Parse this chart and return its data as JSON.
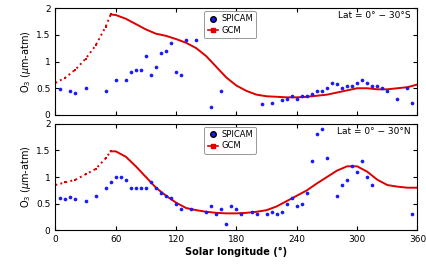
{
  "xlabel": "Solar longitude (°)",
  "xlim": [
    0,
    360
  ],
  "ylim": [
    0,
    2
  ],
  "xticks": [
    0,
    60,
    120,
    180,
    240,
    300,
    360
  ],
  "yticks": [
    0,
    0.5,
    1.0,
    1.5,
    2.0
  ],
  "ytick_labels": [
    "0",
    "0.5",
    "1",
    "1.5",
    "2"
  ],
  "gcm_top_x": [
    0,
    10,
    20,
    30,
    40,
    50,
    55,
    60,
    70,
    80,
    90,
    100,
    110,
    120,
    130,
    140,
    150,
    160,
    170,
    180,
    190,
    200,
    210,
    220,
    230,
    240,
    250,
    260,
    270,
    280,
    290,
    300,
    310,
    320,
    330,
    340,
    350,
    360
  ],
  "gcm_top_y": [
    0.6,
    0.7,
    0.85,
    1.05,
    1.3,
    1.65,
    1.88,
    1.87,
    1.8,
    1.7,
    1.6,
    1.52,
    1.48,
    1.42,
    1.35,
    1.25,
    1.1,
    0.9,
    0.7,
    0.55,
    0.45,
    0.38,
    0.35,
    0.34,
    0.33,
    0.33,
    0.34,
    0.36,
    0.38,
    0.42,
    0.46,
    0.5,
    0.5,
    0.48,
    0.48,
    0.5,
    0.52,
    0.57
  ],
  "gcm_top_dotted_end_idx": 6,
  "spicam_top_x": [
    5,
    15,
    20,
    30,
    50,
    60,
    70,
    75,
    80,
    85,
    90,
    95,
    100,
    105,
    110,
    115,
    120,
    125,
    130,
    140,
    155,
    165,
    205,
    215,
    225,
    230,
    235,
    240,
    245,
    250,
    255,
    260,
    265,
    270,
    275,
    280,
    285,
    290,
    295,
    300,
    305,
    310,
    315,
    320,
    325,
    330,
    340,
    350,
    355
  ],
  "spicam_top_y": [
    0.48,
    0.45,
    0.42,
    0.5,
    0.45,
    0.65,
    0.65,
    0.8,
    0.85,
    0.85,
    1.1,
    0.75,
    0.9,
    1.15,
    1.2,
    1.35,
    0.8,
    0.75,
    1.4,
    1.4,
    0.15,
    0.45,
    0.2,
    0.22,
    0.28,
    0.3,
    0.35,
    0.3,
    0.35,
    0.35,
    0.4,
    0.45,
    0.45,
    0.5,
    0.6,
    0.58,
    0.5,
    0.55,
    0.55,
    0.6,
    0.65,
    0.6,
    0.55,
    0.55,
    0.5,
    0.45,
    0.3,
    0.5,
    0.22
  ],
  "gcm_bot_x": [
    0,
    10,
    20,
    30,
    40,
    50,
    55,
    60,
    70,
    80,
    90,
    100,
    110,
    120,
    130,
    140,
    150,
    160,
    170,
    180,
    190,
    200,
    210,
    220,
    230,
    240,
    250,
    260,
    270,
    280,
    290,
    300,
    310,
    320,
    330,
    340,
    350,
    360
  ],
  "gcm_bot_y": [
    0.85,
    0.9,
    0.95,
    1.05,
    1.15,
    1.35,
    1.48,
    1.48,
    1.38,
    1.2,
    1.0,
    0.8,
    0.65,
    0.52,
    0.42,
    0.38,
    0.35,
    0.33,
    0.32,
    0.32,
    0.33,
    0.35,
    0.38,
    0.45,
    0.55,
    0.65,
    0.75,
    0.88,
    1.0,
    1.12,
    1.2,
    1.2,
    1.1,
    0.95,
    0.85,
    0.82,
    0.8,
    0.8
  ],
  "gcm_bot_dotted_end_idx": 6,
  "spicam_bot_x": [
    5,
    10,
    15,
    20,
    30,
    40,
    50,
    55,
    60,
    65,
    70,
    75,
    80,
    85,
    90,
    95,
    100,
    105,
    110,
    115,
    120,
    125,
    135,
    150,
    155,
    160,
    165,
    170,
    175,
    180,
    185,
    195,
    200,
    210,
    215,
    220,
    225,
    230,
    235,
    240,
    245,
    250,
    255,
    260,
    265,
    270,
    280,
    285,
    290,
    295,
    300,
    305,
    310,
    315,
    355
  ],
  "spicam_bot_y": [
    0.6,
    0.58,
    0.62,
    0.58,
    0.55,
    0.65,
    0.8,
    0.9,
    1.0,
    1.0,
    0.95,
    0.8,
    0.8,
    0.8,
    0.8,
    0.9,
    0.8,
    0.7,
    0.65,
    0.6,
    0.5,
    0.4,
    0.4,
    0.35,
    0.45,
    0.3,
    0.4,
    0.12,
    0.45,
    0.4,
    0.3,
    0.35,
    0.3,
    0.3,
    0.35,
    0.3,
    0.35,
    0.5,
    0.6,
    0.45,
    0.5,
    0.7,
    1.3,
    1.8,
    1.9,
    1.35,
    0.65,
    0.85,
    0.95,
    1.2,
    1.1,
    1.3,
    1.0,
    0.85,
    0.3
  ],
  "label_top": "Lat = 0° − 30°S",
  "label_bot": "Lat = 0° − 30°N",
  "gcm_color": "#dd0000",
  "spicam_color": "#1a1aff",
  "bg_color": "#ffffff"
}
